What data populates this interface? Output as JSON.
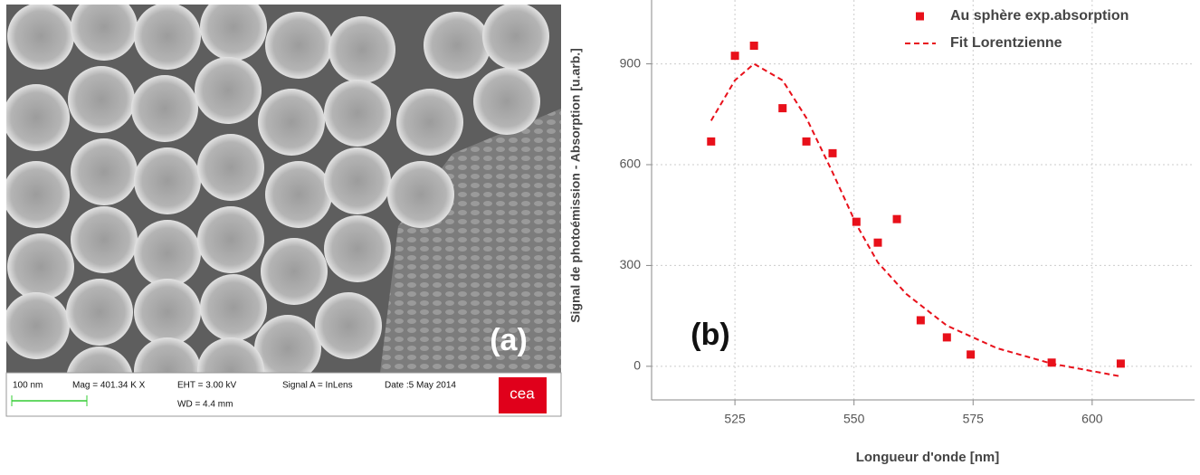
{
  "image": {
    "label": "(a)",
    "scale": "100 nm",
    "mag": "Mag = 401.34 K X",
    "eht": "EHT =  3.00 kV",
    "wd": "WD =  4.4 mm",
    "signal": "Signal A = InLens",
    "date": "Date :5 May 2014",
    "logo": "cea"
  },
  "chart_data": {
    "type": "scatter",
    "annotation": "(b)",
    "x_label": "Longueur d'onde [nm]",
    "y_label": "Signal de photoémission - Absorption [u.arb.]",
    "xlim": [
      507.5,
      621.5
    ],
    "ylim": [
      -100,
      1090
    ],
    "xticks": [
      525,
      550,
      575,
      600
    ],
    "yticks": [
      0,
      300,
      600,
      900
    ],
    "grid": true,
    "legend": "top-right",
    "series": [
      {
        "name": "Au sphère exp.absorption",
        "color": "#e8101a",
        "type": "scatter",
        "x": [
          520,
          525,
          529,
          535,
          540,
          545.5,
          550.5,
          555,
          559,
          564,
          569.5,
          574.5,
          591.5,
          606
        ],
        "values": [
          669,
          924,
          954,
          768,
          669,
          634,
          430,
          368,
          438,
          137,
          86,
          35,
          11,
          8
        ]
      },
      {
        "name": "Fit Lorentzienne",
        "color": "#e8101a",
        "type": "line",
        "dashed": true,
        "x": [
          520,
          525,
          529,
          535,
          540,
          545.5,
          550.5,
          555,
          561,
          569.5,
          580,
          591.5,
          606
        ],
        "values": [
          731,
          851,
          900,
          851,
          739,
          577,
          422,
          309,
          215,
          121,
          54,
          8,
          -30
        ]
      }
    ]
  }
}
